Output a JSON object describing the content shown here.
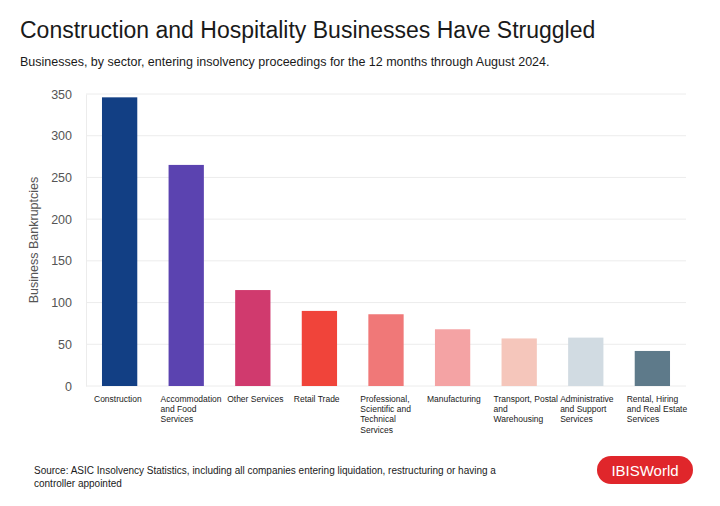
{
  "chart_data": {
    "type": "bar",
    "title": "Construction and Hospitality Businesses Have Struggled",
    "subtitle": "Businesses, by sector, entering insolvency proceedings for the 12 months through August 2024.",
    "y_label": "Business Bankruptcies",
    "categories": [
      "Construction",
      "Accommodation and Food Services",
      "Other Services",
      "Retail Trade",
      "Professional, Scientific and Technical Services",
      "Manufacturing",
      "Transport, Postal and Warehousing",
      "Administrative and Support Services",
      "Rental, Hiring and Real Estate Services"
    ],
    "values": [
      346,
      265,
      115,
      90,
      86,
      68,
      57,
      58,
      42
    ],
    "colors": [
      "#123f84",
      "#5b43b0",
      "#d03a6e",
      "#f0443a",
      "#f07878",
      "#f4a3a4",
      "#f5c6bb",
      "#d1dbe2",
      "#5e7a8a"
    ],
    "ylim": [
      0,
      350
    ],
    "yticks": [
      0,
      50,
      100,
      150,
      200,
      250,
      300,
      350
    ],
    "grid": true,
    "source": "Source: ASIC Insolvency Statistics, including all companies entering liquidation, restructuring or having a controller appointed",
    "logo": "IBISWorld"
  }
}
